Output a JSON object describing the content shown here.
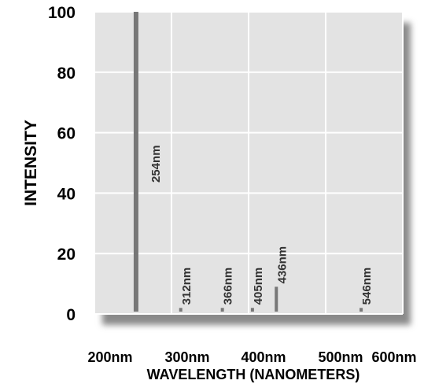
{
  "chart_data": {
    "type": "bar",
    "xlabel": "WAVELENGTH (NANOMETERS)",
    "ylabel": "INTENSITY",
    "xlim": [
      200,
      600
    ],
    "ylim": [
      0,
      100
    ],
    "x_ticks": [
      200,
      300,
      400,
      500,
      600
    ],
    "x_tick_labels": [
      "200nm",
      "300nm",
      "400nm",
      "500nm",
      "600nm"
    ],
    "y_ticks": [
      0,
      20,
      40,
      60,
      80,
      100
    ],
    "y_tick_labels": [
      "0",
      "20",
      "40",
      "60",
      "80",
      "100"
    ],
    "grid": true,
    "lines": [
      {
        "x": 254,
        "y": 100,
        "label": "254nm"
      },
      {
        "x": 312,
        "y": 2,
        "label": "312nm"
      },
      {
        "x": 366,
        "y": 2,
        "label": "366nm"
      },
      {
        "x": 405,
        "y": 2,
        "label": "405nm"
      },
      {
        "x": 436,
        "y": 9,
        "label": "436nm"
      },
      {
        "x": 546,
        "y": 2,
        "label": "546nm"
      }
    ],
    "colors": {
      "plot_background": "#e3e3e3",
      "grid": "#ffffff",
      "line": "#777777",
      "shadow": "#8a8a8a"
    }
  }
}
